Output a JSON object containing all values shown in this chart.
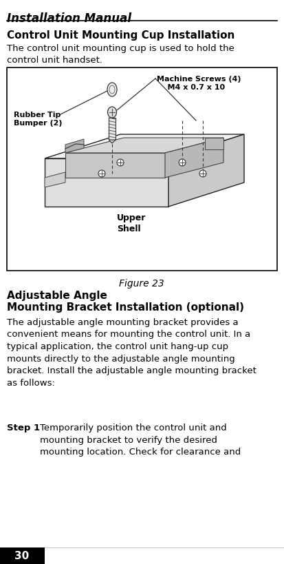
{
  "page_bg": "#ffffff",
  "header_text": "Installation Manual",
  "section1_title": "Control Unit Mounting Cup Installation",
  "section1_body": "The control unit mounting cup is used to hold the\ncontrol unit handset.",
  "figure_caption": "Figure 23",
  "section2_title_line1": "Adjustable Angle",
  "section2_title_line2": "Mounting Bracket Installation (optional)",
  "section2_body": "The adjustable angle mounting bracket provides a\nconvenient means for mounting the control unit. In a\ntypical application, the control unit hang-up cup\nmounts directly to the adjustable angle mounting\nbracket. Install the adjustable angle mounting bracket\nas follows:",
  "step1_label": "Step 1",
  "step1_body": "Temporarily position the control unit and\nmounting bracket to verify the desired\nmounting location. Check for clearance and",
  "label_machine_screws": "Machine Screws (4)\n    M4 x 0.7 x 10",
  "label_rubber_tip": "Rubber Tip\nBumper (2)",
  "label_upper_shell": "Upper\nShell",
  "footer_number": "30",
  "text_color": "#000000",
  "border_color": "#000000",
  "footer_bg": "#000000",
  "footer_text_color": "#ffffff"
}
